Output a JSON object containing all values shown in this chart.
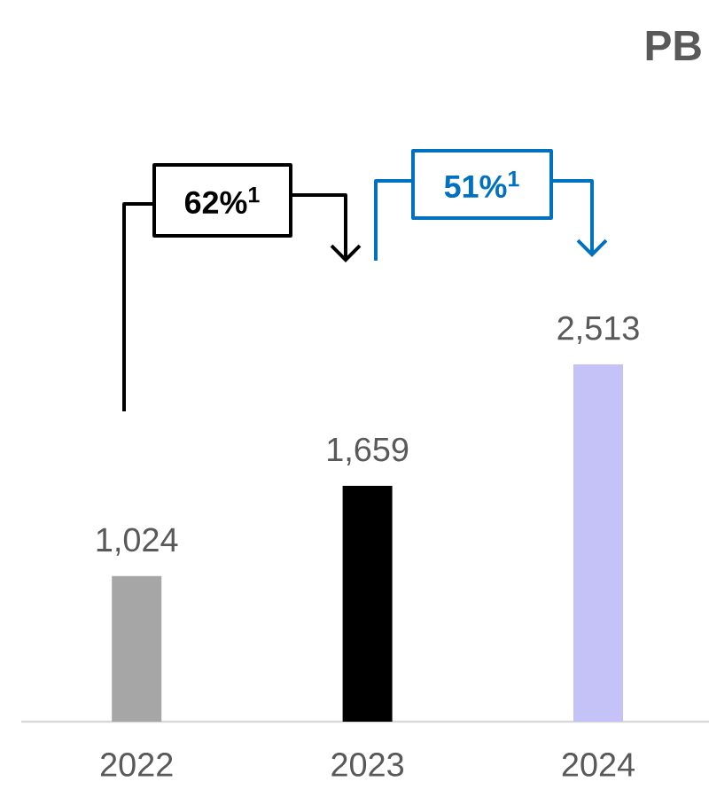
{
  "chart_data": {
    "type": "bar",
    "title": "PB",
    "categories": [
      "2022",
      "2023",
      "2024"
    ],
    "values": [
      1024,
      1659,
      2513
    ],
    "colors": [
      "#a6a6a6",
      "#000000",
      "#c4c2f7"
    ],
    "value_labels": [
      "1,024",
      "1,659",
      "2,513"
    ],
    "annotations": [
      "62%$^{1}$",
      "51%$^{1}$"
    ]
  }
}
